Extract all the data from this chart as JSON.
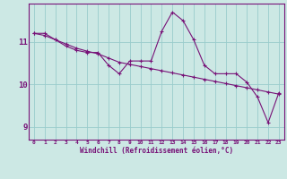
{
  "xlabel": "Windchill (Refroidissement éolien,°C)",
  "background_color": "#cce8e4",
  "line_color": "#771177",
  "grid_color": "#99cccc",
  "hours": [
    0,
    1,
    2,
    3,
    4,
    5,
    6,
    7,
    8,
    9,
    10,
    11,
    12,
    13,
    14,
    15,
    16,
    17,
    18,
    19,
    20,
    21,
    22,
    23
  ],
  "series1": [
    11.2,
    11.2,
    11.05,
    10.9,
    10.8,
    10.75,
    10.75,
    10.45,
    10.25,
    10.55,
    10.55,
    10.55,
    11.25,
    11.7,
    11.5,
    11.05,
    10.45,
    10.25,
    10.25,
    10.25,
    10.05,
    9.7,
    9.1,
    9.8
  ],
  "series2": [
    11.2,
    11.15,
    11.05,
    10.95,
    10.85,
    10.78,
    10.72,
    10.62,
    10.52,
    10.47,
    10.42,
    10.37,
    10.32,
    10.27,
    10.22,
    10.17,
    10.12,
    10.07,
    10.02,
    9.97,
    9.92,
    9.87,
    9.82,
    9.77
  ],
  "yticks": [
    9,
    10,
    11
  ],
  "ylim": [
    8.7,
    11.9
  ],
  "xlim": [
    -0.5,
    23.5
  ],
  "xtick_labels": [
    "0",
    "1",
    "2",
    "3",
    "4",
    "5",
    "6",
    "7",
    "8",
    "9",
    "10",
    "11",
    "12",
    "13",
    "14",
    "15",
    "16",
    "17",
    "18",
    "19",
    "20",
    "21",
    "22",
    "23"
  ]
}
